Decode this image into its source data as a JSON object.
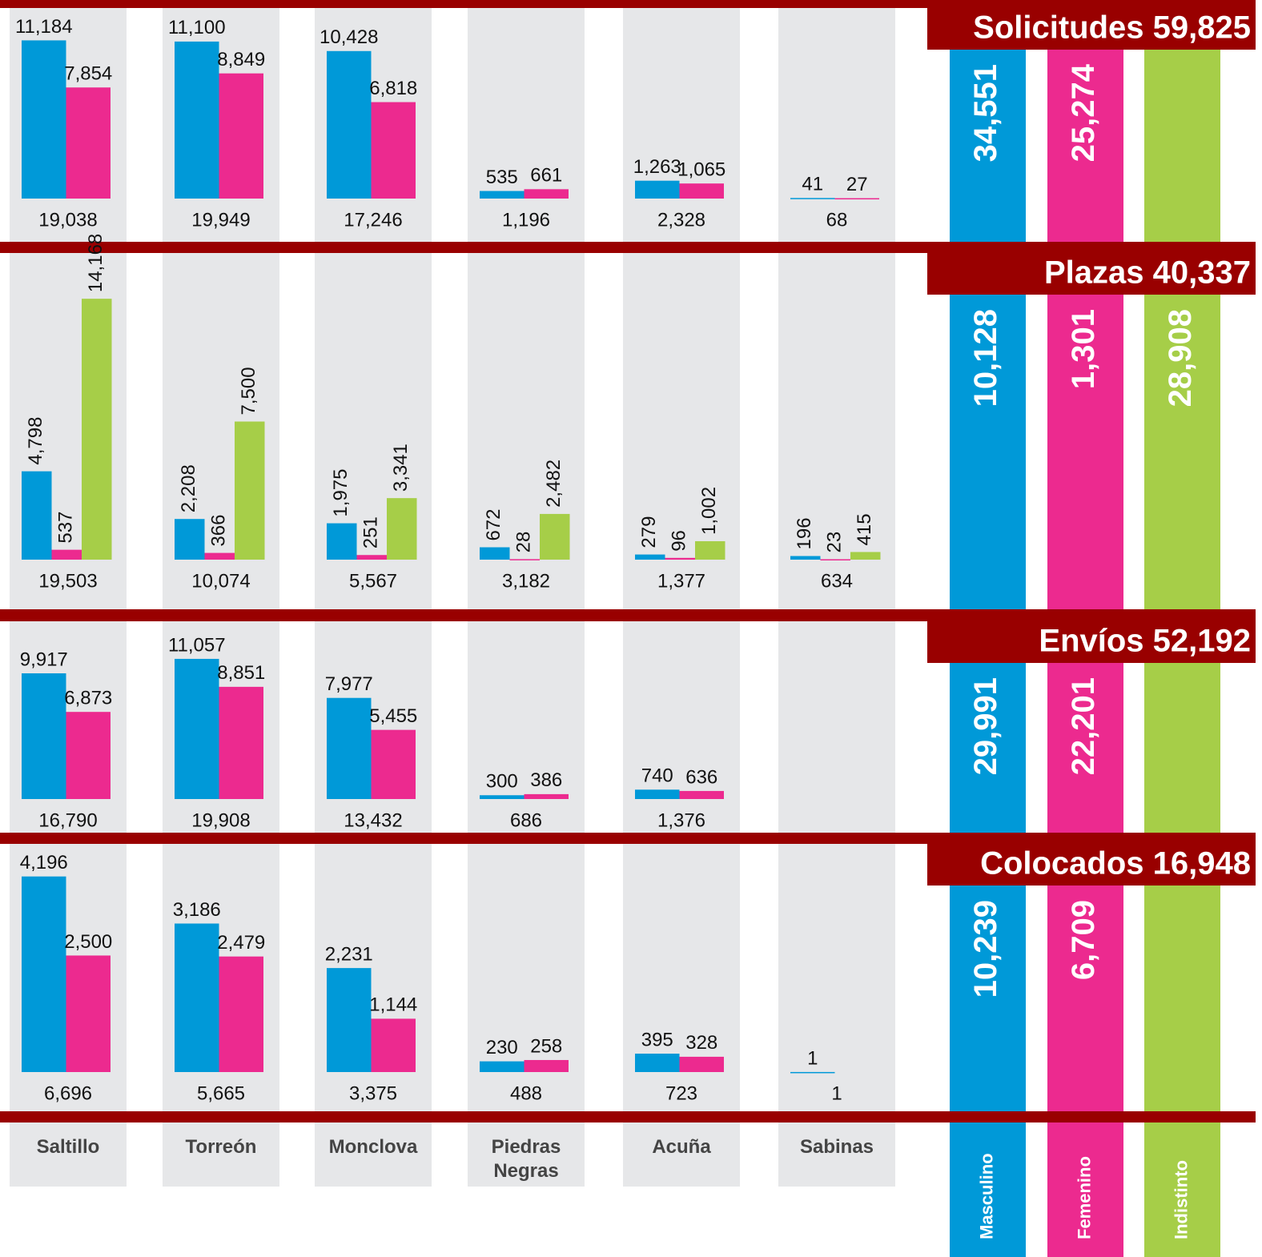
{
  "categories": [
    "Saltillo",
    "Torreón",
    "Monclova",
    "Piedras Negras",
    "Acuña",
    "Sabinas"
  ],
  "legend": [
    {
      "name": "Masculino",
      "color": "#0099d8"
    },
    {
      "name": "Femenino",
      "color": "#ec2a8f"
    },
    {
      "name": "Indistinto",
      "color": "#a6ce48"
    }
  ],
  "chart_data": [
    {
      "type": "bar",
      "title": "Solicitudes 59,825",
      "ylim": [
        0,
        12000
      ],
      "series": [
        {
          "values": [
            11184,
            11100,
            10428,
            535,
            1263,
            41
          ],
          "value_labels": [
            "11,184",
            "11,100",
            "10,428",
            "535",
            "1,263",
            "41"
          ]
        },
        {
          "values": [
            7854,
            8849,
            6818,
            661,
            1065,
            27
          ],
          "value_labels": [
            "7,854",
            "8,849",
            "6,818",
            "661",
            "1,065",
            "27"
          ]
        }
      ],
      "category_totals": [
        19038,
        19949,
        17246,
        1196,
        2328,
        68
      ],
      "category_total_labels": [
        "19,038",
        "19,949",
        "17,246",
        "1,196",
        "2,328",
        "68"
      ],
      "totals": [
        34551,
        25274,
        null
      ],
      "total_labels": [
        "34,551",
        "25,274",
        null
      ]
    },
    {
      "type": "bar",
      "title": "Plazas 40,337",
      "ylim": [
        0,
        15000
      ],
      "series": [
        {
          "values": [
            4798,
            2208,
            1975,
            672,
            279,
            196
          ],
          "value_labels": [
            "4,798",
            "2,208",
            "1,975",
            "672",
            "279",
            "196"
          ]
        },
        {
          "values": [
            537,
            366,
            251,
            28,
            96,
            23
          ],
          "value_labels": [
            "537",
            "366",
            "251",
            "28",
            "96",
            "23"
          ]
        },
        {
          "values": [
            14168,
            7500,
            3341,
            2482,
            1002,
            415
          ],
          "value_labels": [
            "14,168",
            "7,500",
            "3,341",
            "2,482",
            "1,002",
            "415"
          ]
        }
      ],
      "category_totals": [
        19503,
        10074,
        5567,
        3182,
        1377,
        634
      ],
      "category_total_labels": [
        "19,503",
        "10,074",
        "5,567",
        "3,182",
        "1,377",
        "634"
      ],
      "totals": [
        10128,
        1301,
        28908
      ],
      "total_labels": [
        "10,128",
        "1,301",
        "28,908"
      ]
    },
    {
      "type": "bar",
      "title": "Envíos 52,192",
      "ylim": [
        0,
        12000
      ],
      "series": [
        {
          "values": [
            9917,
            11057,
            7977,
            300,
            740,
            null
          ],
          "value_labels": [
            "9,917",
            "11,057",
            "7,977",
            "300",
            "740",
            null
          ]
        },
        {
          "values": [
            6873,
            8851,
            5455,
            386,
            636,
            null
          ],
          "value_labels": [
            "6,873",
            "8,851",
            "5,455",
            "386",
            "636",
            null
          ]
        }
      ],
      "category_totals": [
        16790,
        19908,
        13432,
        686,
        1376,
        null
      ],
      "category_total_labels": [
        "16,790",
        "19,908",
        "13,432",
        "686",
        "1,376",
        null
      ],
      "totals": [
        29991,
        22201,
        null
      ],
      "total_labels": [
        "29,991",
        "22,201",
        null
      ]
    },
    {
      "type": "bar",
      "title": "Colocados 16,948",
      "ylim": [
        0,
        4500
      ],
      "series": [
        {
          "values": [
            4196,
            3186,
            2231,
            230,
            395,
            1
          ],
          "value_labels": [
            "4,196",
            "3,186",
            "2,231",
            "230",
            "395",
            "1"
          ]
        },
        {
          "values": [
            2500,
            2479,
            1144,
            258,
            328,
            null
          ],
          "value_labels": [
            "2,500",
            "2,479",
            "1,144",
            "258",
            "328",
            null
          ]
        }
      ],
      "category_totals": [
        6696,
        5665,
        3375,
        488,
        723,
        1
      ],
      "category_total_labels": [
        "6,696",
        "5,665",
        "3,375",
        "488",
        "723",
        "1"
      ],
      "totals": [
        10239,
        6709,
        null
      ],
      "total_labels": [
        "10,239",
        "6,709",
        null
      ]
    }
  ]
}
